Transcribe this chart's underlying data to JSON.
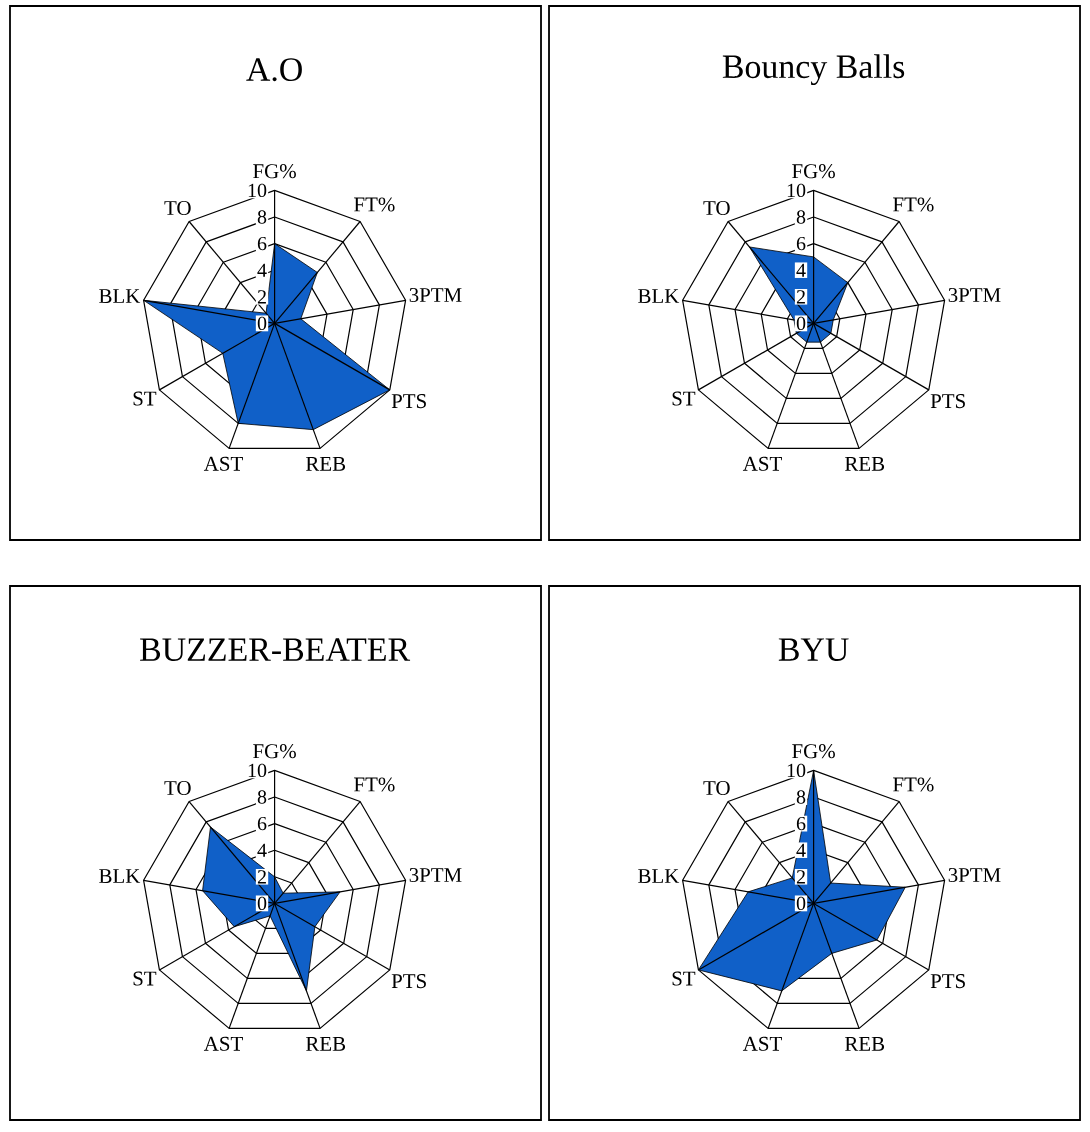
{
  "chart_data": [
    {
      "type": "radar",
      "title": "A.O",
      "categories": [
        "FG%",
        "FT%",
        "3PTM",
        "PTS",
        "REB",
        "AST",
        "ST",
        "BLK",
        "TO"
      ],
      "series": [
        {
          "color": "#1060c8",
          "values": [
            6,
            5,
            2,
            10,
            8.5,
            8,
            4.5,
            10,
            1
          ]
        }
      ],
      "ylim": [
        0,
        10
      ],
      "yticks": [
        0,
        2,
        4,
        6,
        8,
        10
      ],
      "grid": true
    },
    {
      "type": "radar",
      "title": "Bouncy Balls",
      "categories": [
        "FG%",
        "FT%",
        "3PTM",
        "PTS",
        "REB",
        "AST",
        "ST",
        "BLK",
        "TO"
      ],
      "series": [
        {
          "color": "#1060c8",
          "values": [
            5,
            4,
            1.5,
            1.5,
            1.5,
            1.5,
            1.5,
            1.5,
            7.5
          ]
        }
      ],
      "ylim": [
        0,
        10
      ],
      "yticks": [
        0,
        2,
        4,
        6,
        8,
        10
      ],
      "grid": true
    },
    {
      "type": "radar",
      "title": "BUZZER-BEATER",
      "categories": [
        "FG%",
        "FT%",
        "3PTM",
        "PTS",
        "REB",
        "AST",
        "ST",
        "BLK",
        "TO"
      ],
      "series": [
        {
          "color": "#1060c8",
          "values": [
            2,
            1,
            5,
            3.5,
            7,
            1,
            3.5,
            5.5,
            7.5
          ]
        }
      ],
      "ylim": [
        0,
        10
      ],
      "yticks": [
        0,
        2,
        4,
        6,
        8,
        10
      ],
      "grid": true
    },
    {
      "type": "radar",
      "title": "BYU",
      "categories": [
        "FG%",
        "FT%",
        "3PTM",
        "PTS",
        "REB",
        "AST",
        "ST",
        "BLK",
        "TO"
      ],
      "series": [
        {
          "color": "#1060c8",
          "values": [
            10,
            2,
            7,
            5.5,
            4,
            7,
            10,
            5,
            2.5
          ]
        }
      ],
      "ylim": [
        0,
        10
      ],
      "yticks": [
        0,
        2,
        4,
        6,
        8,
        10
      ],
      "grid": true
    }
  ]
}
